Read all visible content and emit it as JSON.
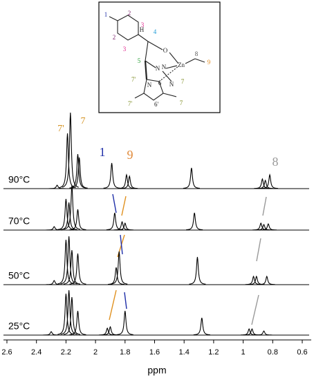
{
  "structure": {
    "labels": [
      {
        "text": "1",
        "color": "#1f2fa8"
      },
      {
        "text": "2",
        "color": "#7a1f6a"
      },
      {
        "text": "3",
        "color": "#e0208a"
      },
      {
        "text": "2",
        "color": "#7a1f6a"
      },
      {
        "text": "3",
        "color": "#e0208a"
      },
      {
        "text": "H",
        "color": "#222"
      },
      {
        "text": "4",
        "color": "#1a9ad6"
      },
      {
        "text": "O",
        "color": "#222"
      },
      {
        "text": "5",
        "color": "#1e9a2e"
      },
      {
        "text": "N",
        "color": "#222"
      },
      {
        "text": "N",
        "color": "#222"
      },
      {
        "text": "Zn",
        "color": "#222"
      },
      {
        "text": "8",
        "color": "#555"
      },
      {
        "text": "9",
        "color": "#e08a1e"
      },
      {
        "text": "7'",
        "color": "#7a8a1e"
      },
      {
        "text": "N",
        "color": "#222"
      },
      {
        "text": "6",
        "color": "#222"
      },
      {
        "text": "N",
        "color": "#222"
      },
      {
        "text": "7",
        "color": "#7a8a1e"
      },
      {
        "text": "7'",
        "color": "#7a8a1e"
      },
      {
        "text": "6'",
        "color": "#222"
      },
      {
        "text": "7",
        "color": "#7a8a1e"
      }
    ]
  },
  "chart_data": {
    "type": "nmr",
    "xlabel": "ppm",
    "xlim": [
      2.6,
      0.6
    ],
    "xticks": [
      2.6,
      2.4,
      2.2,
      2,
      1.8,
      1.6,
      1.4,
      1.2,
      1,
      0.8,
      0.6
    ],
    "annotations": [
      {
        "text": "7'",
        "color": "#d4901e"
      },
      {
        "text": "7",
        "color": "#d4901e"
      },
      {
        "text": "1",
        "color": "#1f2fa8"
      },
      {
        "text": "9",
        "color": "#e08a3a"
      },
      {
        "text": "8",
        "color": "#999999"
      }
    ],
    "series": [
      {
        "name": "90°C",
        "color": "#000000",
        "x": [
          2.26,
          2.19,
          2.17,
          2.12,
          2.11,
          1.89,
          1.79,
          1.77,
          1.35,
          0.87,
          0.85,
          0.82
        ],
        "values": [
          5,
          80,
          110,
          50,
          45,
          37,
          20,
          18,
          30,
          14,
          12,
          20
        ]
      },
      {
        "name": "70°C",
        "color": "#000000",
        "x": [
          2.28,
          2.2,
          2.18,
          2.16,
          2.12,
          1.87,
          1.82,
          1.8,
          1.33,
          0.88,
          0.86,
          0.83
        ],
        "values": [
          5,
          45,
          40,
          65,
          30,
          25,
          12,
          10,
          25,
          10,
          8,
          9
        ]
      },
      {
        "name": "50°C",
        "color": "#000000",
        "x": [
          2.28,
          2.2,
          2.18,
          2.16,
          2.12,
          1.86,
          1.84,
          1.31,
          0.93,
          0.91,
          0.84
        ],
        "values": [
          6,
          65,
          70,
          50,
          45,
          25,
          48,
          40,
          12,
          12,
          12
        ]
      },
      {
        "name": "25°C",
        "color": "#000000",
        "x": [
          2.3,
          2.2,
          2.18,
          2.16,
          2.12,
          1.92,
          1.9,
          1.8,
          1.28,
          0.96,
          0.94,
          0.86
        ],
        "values": [
          5,
          60,
          65,
          55,
          35,
          10,
          12,
          35,
          25,
          9,
          9,
          6
        ]
      }
    ]
  }
}
